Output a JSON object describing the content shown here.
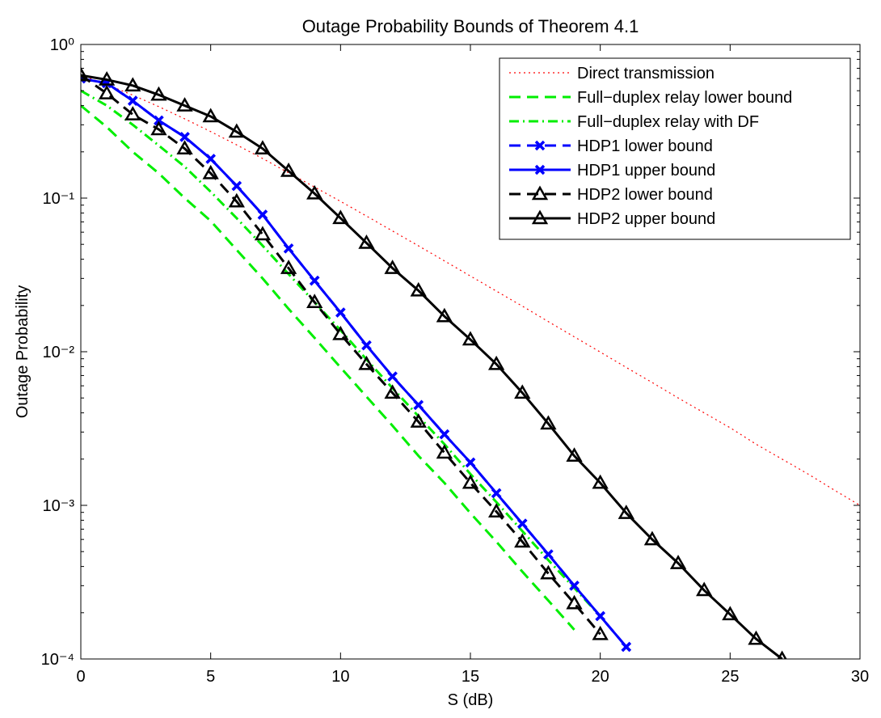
{
  "chart_data": {
    "type": "line",
    "title": "Outage Probability Bounds of Theorem 4.1",
    "xlabel": "S (dB)",
    "ylabel": "Outage Probability",
    "yscale": "log",
    "grid": false,
    "legend": "upper right",
    "x": [
      0,
      1,
      2,
      3,
      4,
      5,
      6,
      7,
      8,
      9,
      10,
      11,
      12,
      13,
      14,
      15,
      16,
      17,
      18,
      19,
      20,
      21,
      22,
      23,
      24,
      25,
      26,
      27,
      28,
      29,
      30
    ],
    "xlim": [
      0,
      30
    ],
    "xticks": [
      0,
      5,
      10,
      15,
      20,
      25,
      30
    ],
    "ylim": [
      0.0001,
      1
    ],
    "yticks": [
      {
        "value": 0.0001,
        "label": "10⁻⁴"
      },
      {
        "value": 0.001,
        "label": "10⁻³"
      },
      {
        "value": 0.01,
        "label": "10⁻²"
      },
      {
        "value": 0.1,
        "label": "10⁻¹"
      },
      {
        "value": 1,
        "label": "10⁰"
      }
    ],
    "series": [
      {
        "name": "Direct transmission",
        "color": "#ff0000",
        "linestyle": "dotted",
        "values": [
          0.632,
          0.548,
          0.468,
          0.394,
          0.328,
          0.271,
          0.222,
          0.181,
          0.146,
          0.118,
          0.0952,
          0.0764,
          0.0611,
          0.0489,
          0.039,
          0.0311,
          0.0248,
          0.0198,
          0.0157,
          0.0125,
          0.00995,
          0.0079,
          0.0063,
          0.005,
          0.004,
          0.0032,
          0.0025,
          0.002,
          0.0016,
          0.00126,
          0.001
        ]
      },
      {
        "name": "Full−duplex relay lower bound",
        "color": "#00ee00",
        "linestyle": "dashed",
        "values": [
          0.4,
          0.29,
          0.2,
          0.145,
          0.1,
          0.071,
          0.046,
          0.03,
          0.019,
          0.0123,
          0.0079,
          0.0051,
          0.0033,
          0.0021,
          0.0014,
          0.00089,
          0.00058,
          0.00037,
          0.00024,
          0.000155,
          null,
          null,
          null,
          null,
          null,
          null,
          null,
          null,
          null,
          null,
          null
        ]
      },
      {
        "name": "Full−duplex relay with DF",
        "color": "#00ee00",
        "linestyle": "dashdot",
        "values": [
          0.5,
          0.4,
          0.3,
          0.22,
          0.16,
          0.11,
          0.074,
          0.049,
          0.032,
          0.021,
          0.0138,
          0.0089,
          0.0058,
          0.0038,
          0.0025,
          0.0016,
          0.00105,
          0.00068,
          0.00044,
          0.00029,
          0.00019,
          null,
          null,
          null,
          null,
          null,
          null,
          null,
          null,
          null,
          null
        ]
      },
      {
        "name": "HDP1 lower bound",
        "color": "#0000ff",
        "linestyle": "dashed",
        "marker": "x",
        "values": [
          0.6,
          0.56,
          0.43,
          0.32,
          0.25,
          0.18,
          0.12,
          0.078,
          0.047,
          0.029,
          0.018,
          0.011,
          0.0069,
          0.0045,
          0.0029,
          0.0019,
          0.0012,
          0.00076,
          0.00048,
          0.0003,
          0.00019,
          0.00012,
          null,
          null,
          null,
          null,
          null,
          null,
          null,
          null,
          null
        ]
      },
      {
        "name": "HDP1 upper bound",
        "color": "#0000ff",
        "linestyle": "solid",
        "marker": "x",
        "values": [
          0.6,
          0.56,
          0.43,
          0.32,
          0.25,
          0.18,
          0.12,
          0.078,
          0.047,
          0.029,
          0.018,
          0.011,
          0.0069,
          0.0045,
          0.0029,
          0.0019,
          0.0012,
          0.00076,
          0.00048,
          0.0003,
          0.00019,
          0.00012,
          null,
          null,
          null,
          null,
          null,
          null,
          null,
          null,
          null
        ]
      },
      {
        "name": "HDP2 lower bound",
        "color": "#000000",
        "linestyle": "dashed",
        "marker": "triangle",
        "values": [
          0.63,
          0.48,
          0.35,
          0.28,
          0.21,
          0.145,
          0.095,
          0.058,
          0.035,
          0.021,
          0.013,
          0.0083,
          0.0054,
          0.0035,
          0.0022,
          0.0014,
          0.00091,
          0.00058,
          0.00036,
          0.00023,
          0.000145,
          null,
          null,
          null,
          null,
          null,
          null,
          null,
          null,
          null,
          null
        ]
      },
      {
        "name": "HDP2 upper bound",
        "color": "#000000",
        "linestyle": "solid",
        "marker": "triangle",
        "values": [
          0.63,
          0.59,
          0.54,
          0.47,
          0.4,
          0.34,
          0.27,
          0.21,
          0.15,
          0.107,
          0.074,
          0.051,
          0.035,
          0.025,
          0.017,
          0.012,
          0.0083,
          0.0054,
          0.0034,
          0.0021,
          0.0014,
          0.00089,
          0.0006,
          0.00042,
          0.00028,
          0.000195,
          0.000135,
          0.0001,
          null,
          null,
          null
        ]
      }
    ]
  }
}
